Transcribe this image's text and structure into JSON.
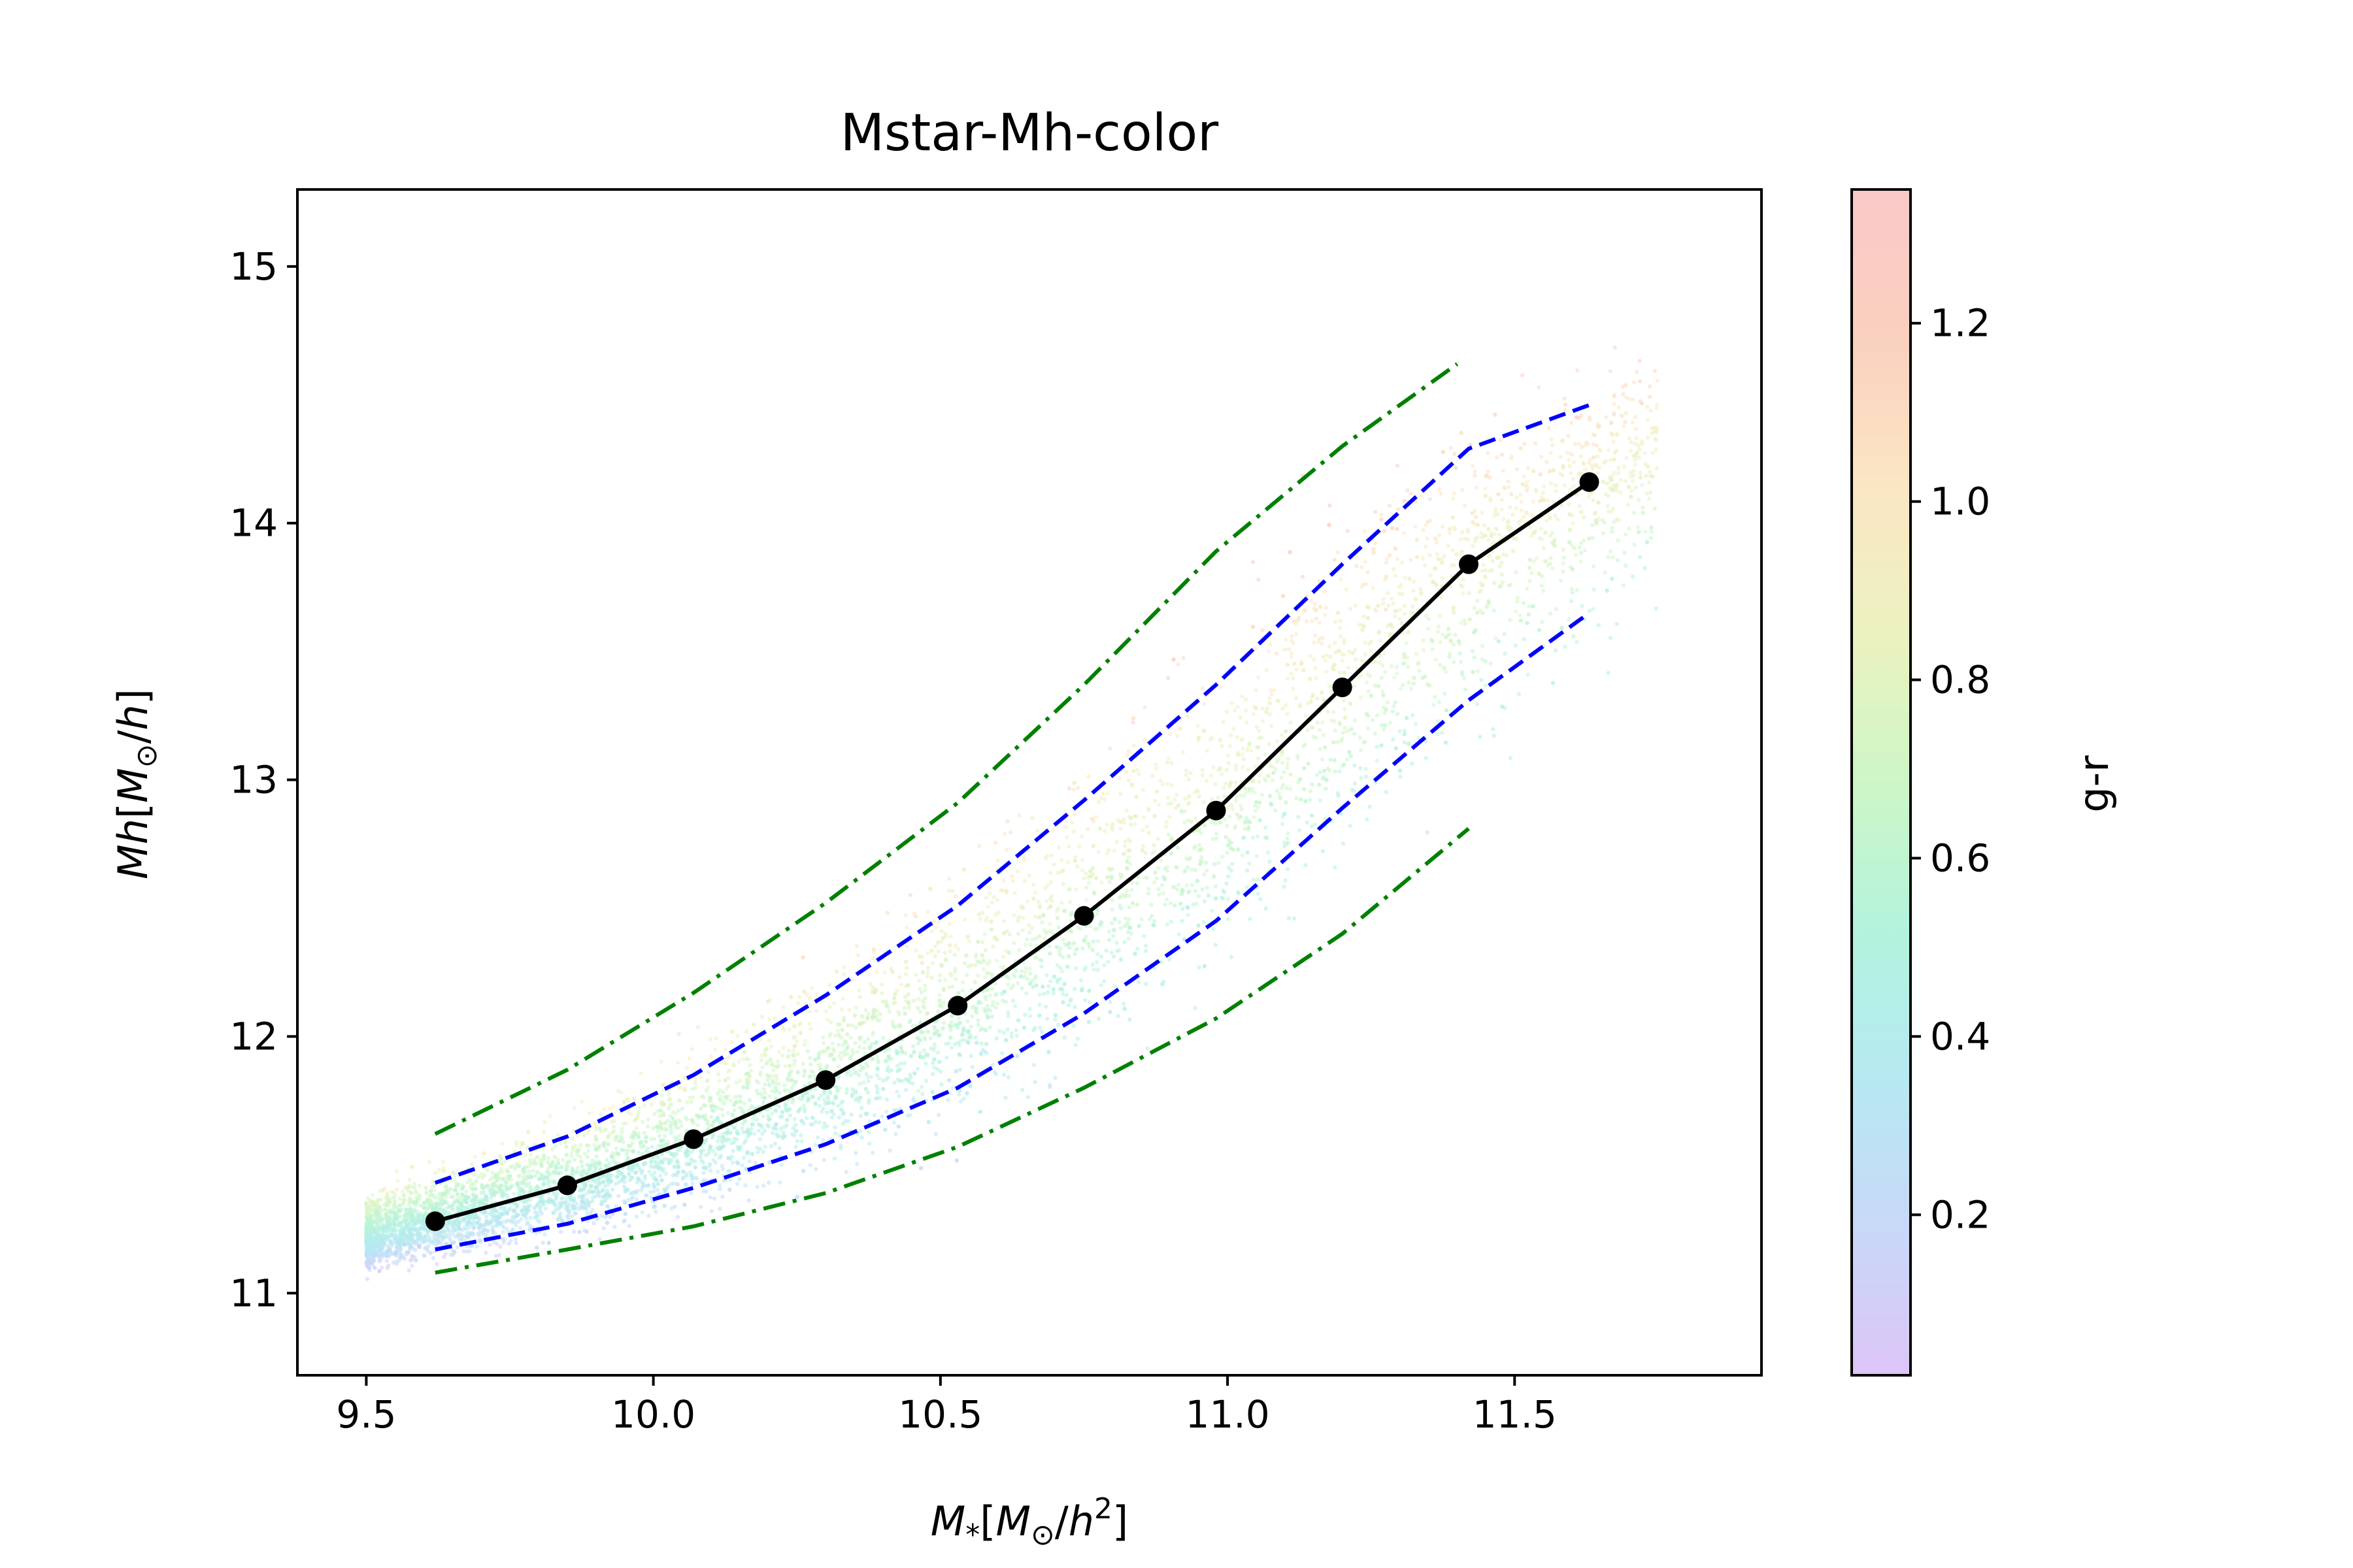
{
  "chart_data": {
    "type": "scatter",
    "title": "Mstar-Mh-color",
    "xlabel": {
      "main": "M",
      "sub": "*",
      "bracket_open": "[",
      "inner": "M",
      "inner_sub": "⊙",
      "slash": "/",
      "h": "h",
      "sup": "2",
      "bracket_close": "]"
    },
    "ylabel": {
      "main": "Mh",
      "bracket_open": "[",
      "inner": "M",
      "inner_sub": "⊙",
      "slash": "/",
      "h": "h",
      "bracket_close": "]"
    },
    "xlim": [
      9.38,
      11.93
    ],
    "ylim": [
      10.68,
      15.3
    ],
    "xticks": [
      9.5,
      10.0,
      10.5,
      11.0,
      11.5
    ],
    "xtick_labels": [
      "9.5",
      "10.0",
      "10.5",
      "11.0",
      "11.5"
    ],
    "yticks": [
      11,
      12,
      13,
      14,
      15
    ],
    "ytick_labels": [
      "11",
      "12",
      "13",
      "14",
      "15"
    ],
    "grid": false,
    "colorbar": {
      "label": "g-r",
      "range": [
        0.02,
        1.35
      ],
      "ticks": [
        0.2,
        0.4,
        0.6,
        0.8,
        1.0,
        1.2
      ],
      "tick_labels": [
        "0.2",
        "0.4",
        "0.6",
        "0.8",
        "1.0",
        "1.2"
      ],
      "colors": [
        "#dcc5f7",
        "#c8d8f7",
        "#b6e9f2",
        "#b3f3dd",
        "#cdf6c7",
        "#ecf2c0",
        "#fbe6c4",
        "#fad0bf",
        "#f9c8c8"
      ]
    },
    "series": [
      {
        "style": "median",
        "color": "#000000",
        "x": [
          9.62,
          9.85,
          10.07,
          10.3,
          10.53,
          10.75,
          10.98,
          11.2,
          11.42,
          11.63
        ],
        "y": [
          11.28,
          11.42,
          11.6,
          11.83,
          12.12,
          12.47,
          12.88,
          13.36,
          13.84,
          14.16
        ]
      },
      {
        "style": "blue-upper",
        "color": "#0000ff",
        "x": [
          9.62,
          9.85,
          10.07,
          10.3,
          10.53,
          10.75,
          10.98,
          11.2,
          11.42,
          11.63
        ],
        "y": [
          11.43,
          11.61,
          11.85,
          12.16,
          12.51,
          12.92,
          13.37,
          13.84,
          14.29,
          14.46
        ]
      },
      {
        "style": "blue-lower",
        "color": "#0000ff",
        "x": [
          9.62,
          9.85,
          10.07,
          10.3,
          10.53,
          10.75,
          10.98,
          11.2,
          11.42,
          11.63
        ],
        "y": [
          11.17,
          11.27,
          11.41,
          11.58,
          11.8,
          12.09,
          12.45,
          12.89,
          13.31,
          13.65
        ]
      },
      {
        "style": "green-upper",
        "color": "#008000",
        "x": [
          9.62,
          9.85,
          10.07,
          10.3,
          10.53,
          10.75,
          10.98,
          11.2,
          11.4
        ],
        "y": [
          11.62,
          11.87,
          12.17,
          12.52,
          12.91,
          13.37,
          13.89,
          14.3,
          14.62
        ]
      },
      {
        "style": "green-lower",
        "color": "#008000",
        "x": [
          9.62,
          9.85,
          10.07,
          10.3,
          10.53,
          10.75,
          10.98,
          11.2,
          11.42
        ],
        "y": [
          11.08,
          11.17,
          11.26,
          11.39,
          11.57,
          11.8,
          12.07,
          12.4,
          12.81
        ]
      }
    ]
  }
}
